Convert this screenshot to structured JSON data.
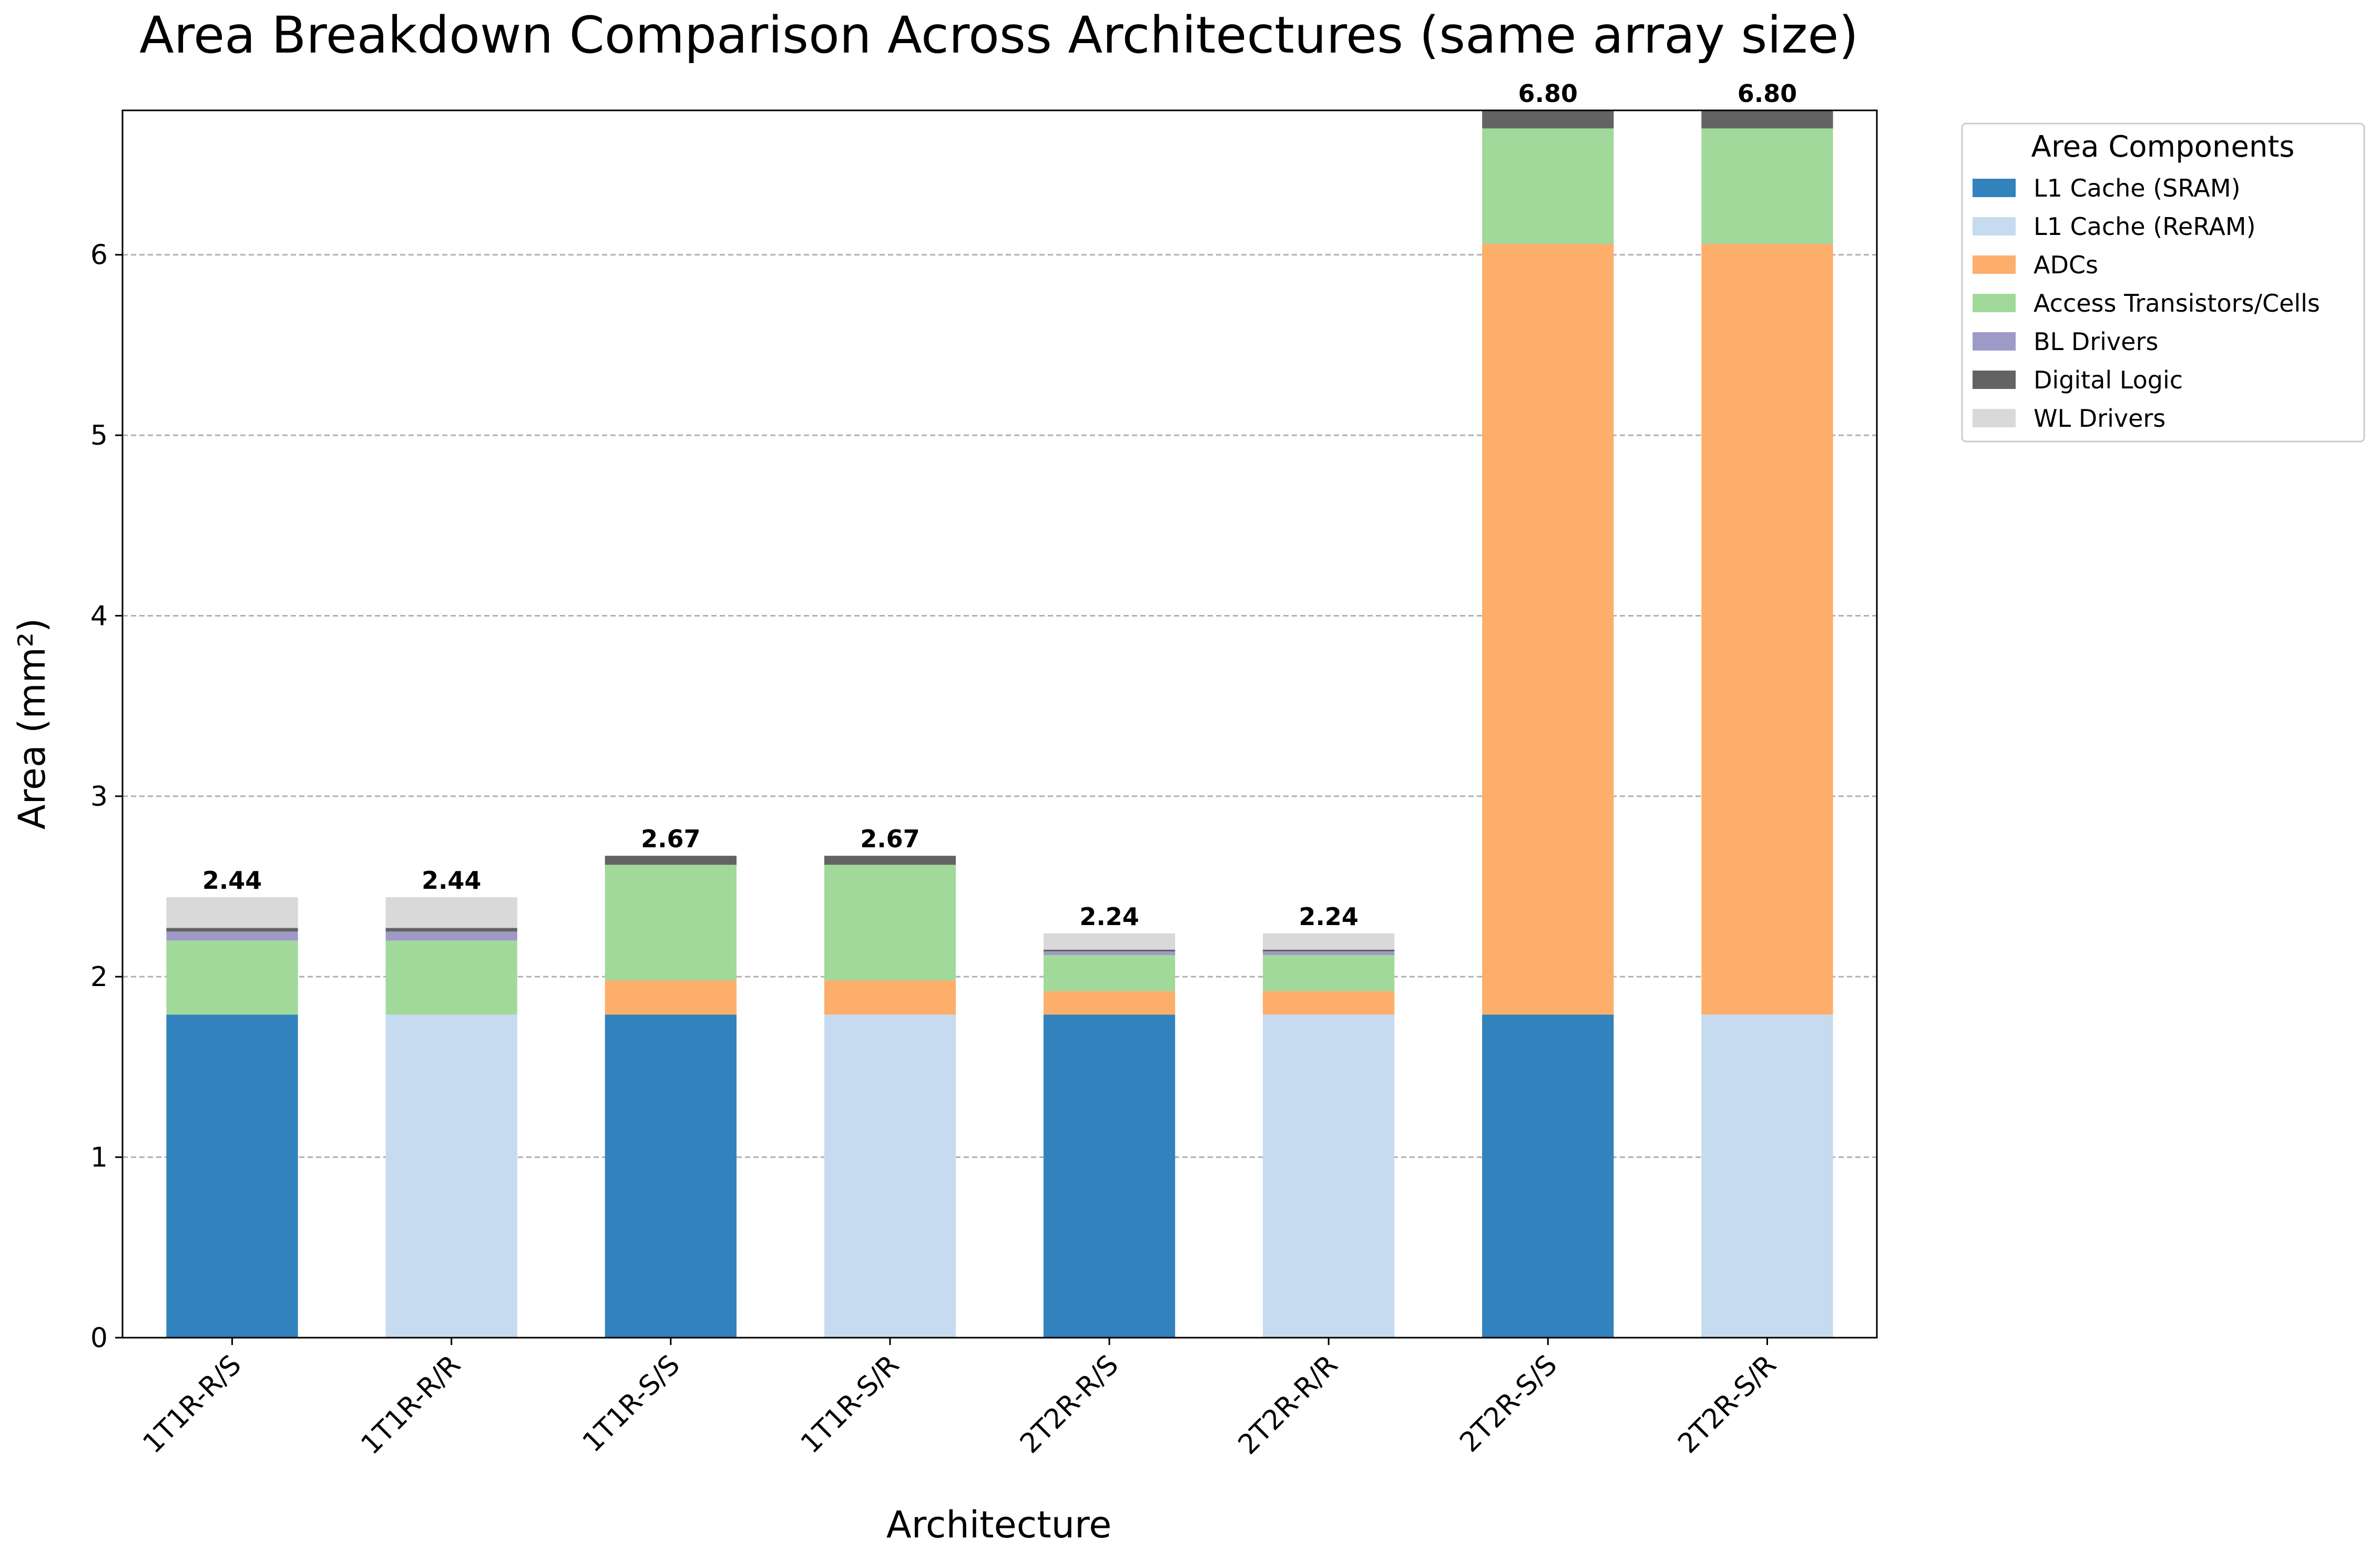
{
  "chart_data": {
    "type": "bar",
    "stacked": true,
    "title": "Area Breakdown Comparison Across Architectures (same array size)",
    "xlabel": "Architecture",
    "ylabel": "Area (mm²)",
    "ylim": [
      0,
      6.8
    ],
    "yticks": [
      "0",
      "1",
      "2",
      "3",
      "4",
      "5",
      "6"
    ],
    "grid": "horizontal dashed",
    "categories": [
      "1T1R-R/S",
      "1T1R-R/R",
      "1T1R-S/S",
      "1T1R-S/R",
      "2T2R-R/S",
      "2T2R-R/R",
      "2T2R-S/S",
      "2T2R-S/R"
    ],
    "series": [
      {
        "name": "L1 Cache (SRAM)",
        "color": "#3182bd",
        "values": [
          1.79,
          0,
          1.79,
          0,
          1.79,
          0,
          1.79,
          0
        ]
      },
      {
        "name": "L1 Cache (ReRAM)",
        "color": "#c6dbef",
        "values": [
          0,
          1.79,
          0,
          1.79,
          0,
          1.79,
          0,
          1.79
        ]
      },
      {
        "name": "ADCs",
        "color": "#fdae6b",
        "values": [
          0,
          0,
          0.19,
          0.19,
          0.13,
          0.13,
          4.27,
          4.27
        ]
      },
      {
        "name": "Access Transistors/Cells",
        "color": "#a1d99b",
        "values": [
          0.41,
          0.41,
          0.64,
          0.64,
          0.2,
          0.2,
          0.64,
          0.64
        ]
      },
      {
        "name": "BL Drivers",
        "color": "#9e9ac8",
        "values": [
          0.05,
          0.05,
          0,
          0,
          0.02,
          0.02,
          0,
          0
        ]
      },
      {
        "name": "Digital Logic",
        "color": "#636363",
        "values": [
          0.02,
          0.02,
          0.05,
          0.05,
          0.01,
          0.01,
          0.1,
          0.1
        ]
      },
      {
        "name": "WL Drivers",
        "color": "#d9d9d9",
        "values": [
          0.17,
          0.17,
          0,
          0,
          0.09,
          0.09,
          0,
          0
        ]
      }
    ],
    "totals": [
      "2.44",
      "2.44",
      "2.67",
      "2.67",
      "2.24",
      "2.24",
      "6.80",
      "6.80"
    ],
    "legend": {
      "title": "Area Components",
      "placement": "outside top-right"
    }
  }
}
